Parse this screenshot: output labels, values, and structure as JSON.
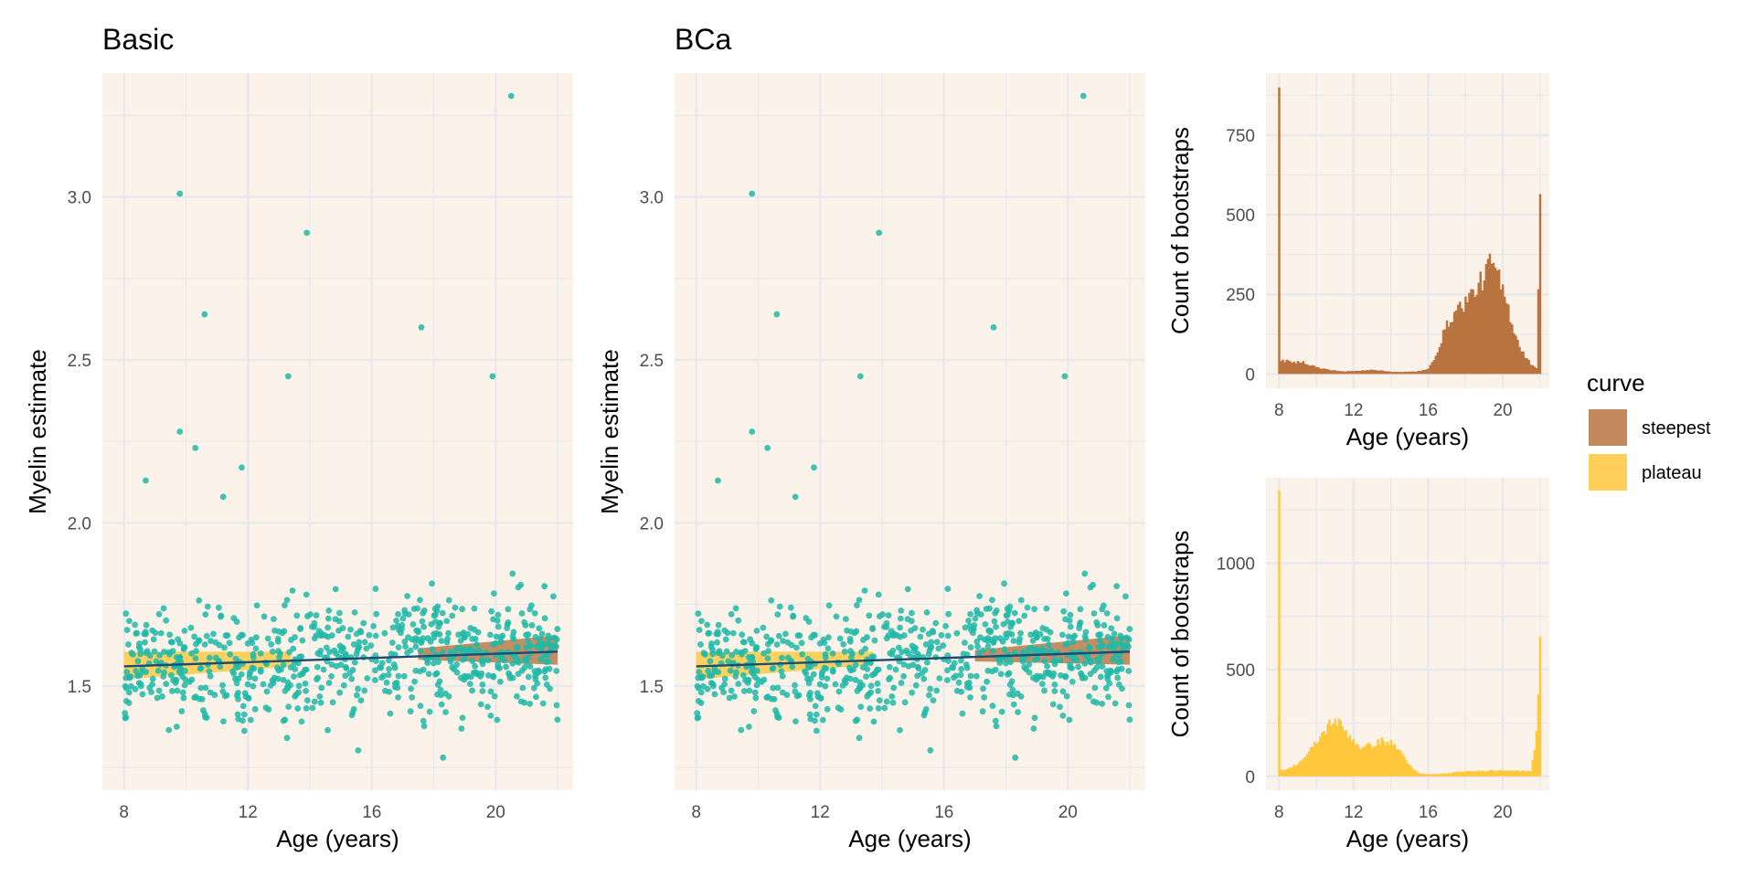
{
  "colors": {
    "panel_bg": "#fbf2e9",
    "grid": "#e8e9ec",
    "points": "#20b9a8",
    "fit_line": "#1c4b73",
    "plateau": "#ffc83c",
    "steepest": "#b8733f"
  },
  "chart_data": [
    {
      "type": "scatter",
      "title": "Basic",
      "xlabel": "Age (years)",
      "ylabel": "Myelin estimate",
      "xlim": [
        7.3,
        22.5
      ],
      "ylim": [
        1.18,
        3.38
      ],
      "xticks": [
        "8",
        "12",
        "16",
        "20"
      ],
      "yticks": [
        "1.5",
        "2.0",
        "2.5",
        "3.0"
      ],
      "fit_line": {
        "x": [
          8,
          22
        ],
        "y": [
          1.56,
          1.605
        ]
      },
      "bands": [
        {
          "curve": "plateau",
          "x": [
            8,
            13.4
          ],
          "lower": [
            1.52,
            1.56
          ],
          "upper": [
            1.605,
            1.605
          ]
        },
        {
          "curve": "steepest",
          "x": [
            17.5,
            22
          ],
          "lower": [
            1.58,
            1.565
          ],
          "upper": [
            1.615,
            1.655
          ]
        }
      ],
      "outliers": [
        [
          9.8,
          3.01
        ],
        [
          13.9,
          2.89
        ],
        [
          10.6,
          2.64
        ],
        [
          17.6,
          2.6
        ],
        [
          13.3,
          2.45
        ],
        [
          19.9,
          2.45
        ],
        [
          20.5,
          3.31
        ],
        [
          9.8,
          2.28
        ],
        [
          10.3,
          2.23
        ],
        [
          11.8,
          2.17
        ],
        [
          8.7,
          2.13
        ],
        [
          11.2,
          2.08
        ],
        [
          18.3,
          1.28
        ]
      ]
    },
    {
      "type": "scatter",
      "title": "BCa",
      "xlabel": "Age (years)",
      "ylabel": "Myelin estimate",
      "xlim": [
        7.3,
        22.5
      ],
      "ylim": [
        1.18,
        3.38
      ],
      "xticks": [
        "8",
        "12",
        "16",
        "20"
      ],
      "yticks": [
        "1.5",
        "2.0",
        "2.5",
        "3.0"
      ],
      "fit_line": {
        "x": [
          8,
          22
        ],
        "y": [
          1.56,
          1.605
        ]
      },
      "bands": [
        {
          "curve": "plateau",
          "x": [
            8,
            13.7
          ],
          "lower": [
            1.52,
            1.565
          ],
          "upper": [
            1.605,
            1.605
          ]
        },
        {
          "curve": "steepest",
          "x": [
            17,
            22
          ],
          "lower": [
            1.575,
            1.565
          ],
          "upper": [
            1.61,
            1.655
          ]
        }
      ],
      "outliers": [
        [
          9.8,
          3.01
        ],
        [
          13.9,
          2.89
        ],
        [
          10.6,
          2.64
        ],
        [
          17.6,
          2.6
        ],
        [
          13.3,
          2.45
        ],
        [
          19.9,
          2.45
        ],
        [
          20.5,
          3.31
        ],
        [
          9.8,
          2.28
        ],
        [
          10.3,
          2.23
        ],
        [
          11.8,
          2.17
        ],
        [
          8.7,
          2.13
        ],
        [
          11.2,
          2.08
        ],
        [
          18.3,
          1.28
        ]
      ]
    },
    {
      "type": "bar",
      "curve": "steepest",
      "xlabel": "Age (years)",
      "ylabel": "Count of bootstraps",
      "xlim": [
        7.3,
        22.5
      ],
      "ylim": [
        -45,
        945
      ],
      "xticks": [
        "8",
        "12",
        "16",
        "20"
      ],
      "yticks": [
        "0",
        "250",
        "500",
        "750"
      ],
      "profile": [
        [
          8,
          900
        ],
        [
          8.1,
          45
        ],
        [
          8.4,
          40
        ],
        [
          8.8,
          35
        ],
        [
          9.2,
          40
        ],
        [
          9.6,
          30
        ],
        [
          10.2,
          18
        ],
        [
          10.8,
          12
        ],
        [
          11.5,
          8
        ],
        [
          12.3,
          10
        ],
        [
          13,
          14
        ],
        [
          13.8,
          8
        ],
        [
          14.6,
          6
        ],
        [
          15.4,
          8
        ],
        [
          16,
          15
        ],
        [
          16.4,
          60
        ],
        [
          16.9,
          140
        ],
        [
          17.4,
          195
        ],
        [
          17.8,
          215
        ],
        [
          18.2,
          240
        ],
        [
          18.6,
          270
        ],
        [
          19,
          305
        ],
        [
          19.2,
          330
        ],
        [
          19.4,
          355
        ],
        [
          19.6,
          320
        ],
        [
          19.8,
          295
        ],
        [
          20.2,
          225
        ],
        [
          20.6,
          140
        ],
        [
          21,
          75
        ],
        [
          21.4,
          40
        ],
        [
          21.6,
          25
        ],
        [
          21.8,
          20
        ],
        [
          22,
          565
        ]
      ]
    },
    {
      "type": "bar",
      "curve": "plateau",
      "xlabel": "Age (years)",
      "ylabel": "Count of bootstraps",
      "xlim": [
        7.3,
        22.5
      ],
      "ylim": [
        -65,
        1400
      ],
      "xticks": [
        "8",
        "12",
        "16",
        "20"
      ],
      "yticks": [
        "0",
        "500",
        "1000"
      ],
      "profile": [
        [
          8,
          1340
        ],
        [
          8.1,
          30
        ],
        [
          8.5,
          35
        ],
        [
          9,
          60
        ],
        [
          9.5,
          100
        ],
        [
          10,
          160
        ],
        [
          10.5,
          220
        ],
        [
          10.9,
          270
        ],
        [
          11.3,
          240
        ],
        [
          11.7,
          200
        ],
        [
          12.1,
          160
        ],
        [
          12.5,
          130
        ],
        [
          13,
          150
        ],
        [
          13.5,
          165
        ],
        [
          14,
          155
        ],
        [
          14.4,
          130
        ],
        [
          14.8,
          80
        ],
        [
          15.2,
          30
        ],
        [
          15.6,
          12
        ],
        [
          16.2,
          10
        ],
        [
          17,
          14
        ],
        [
          17.8,
          22
        ],
        [
          18.6,
          25
        ],
        [
          19.4,
          28
        ],
        [
          20.2,
          30
        ],
        [
          21,
          25
        ],
        [
          21.5,
          26
        ],
        [
          21.8,
          190
        ],
        [
          22,
          655
        ]
      ]
    }
  ],
  "legend": {
    "title": "curve",
    "items": [
      {
        "label": "steepest",
        "key": "steepest"
      },
      {
        "label": "plateau",
        "key": "plateau"
      }
    ]
  }
}
